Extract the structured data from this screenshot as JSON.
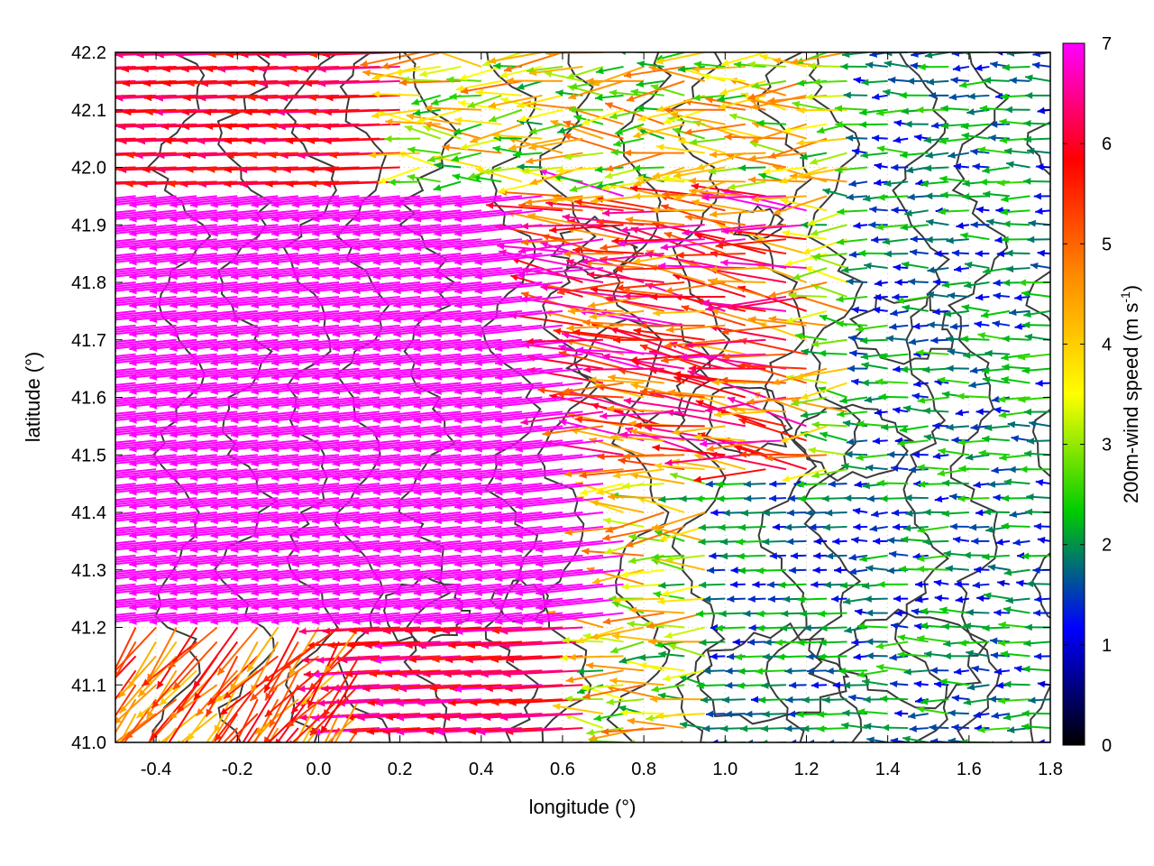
{
  "chart_data": {
    "type": "vector-field",
    "xlabel": "longitude (°)",
    "ylabel": "latitude (°)",
    "colorbar_label": "200m-wind speed",
    "colorbar_unit_prefix": "(m s",
    "colorbar_unit_exp": "-1",
    "colorbar_unit_suffix": ")",
    "xlim": [
      -0.5,
      1.8
    ],
    "ylim": [
      41.0,
      42.2
    ],
    "x_ticks": [
      "-0.4",
      "-0.2",
      "0.0",
      "0.2",
      "0.4",
      "0.6",
      "0.8",
      "1.0",
      "1.2",
      "1.4",
      "1.6",
      "1.8"
    ],
    "y_ticks": [
      "41.0",
      "41.1",
      "41.2",
      "41.3",
      "41.4",
      "41.5",
      "41.6",
      "41.7",
      "41.8",
      "41.9",
      "42.0",
      "42.1",
      "42.2"
    ],
    "colorbar_range": [
      0,
      7
    ],
    "colorbar_ticks": [
      "0",
      "1",
      "2",
      "3",
      "4",
      "5",
      "6",
      "7"
    ],
    "colorbar_stops": [
      "#000000",
      "#0000ff",
      "#00cc00",
      "#ffff00",
      "#ff8c00",
      "#ff0000",
      "#ff00ff"
    ],
    "grid": true,
    "contours": "terrain elevation contour lines (dark gray)",
    "wind_field": {
      "grid_lon_start": -0.5,
      "grid_lon_step": 0.05,
      "grid_lat_start": 41.0,
      "grid_lat_step": 0.05,
      "speed_regions": [
        {
          "region": "west, 41.2–41.95 N",
          "speed": 7,
          "direction_deg": 185
        },
        {
          "region": "northwest, 41.95–42.2 N",
          "speed": 5.5,
          "direction_deg": 182
        },
        {
          "region": "southwest, 41.0–41.2 N",
          "speed": 5,
          "direction_deg": 215
        },
        {
          "region": "east of 1.3 E",
          "speed": 2,
          "direction_deg": 180
        }
      ]
    }
  }
}
